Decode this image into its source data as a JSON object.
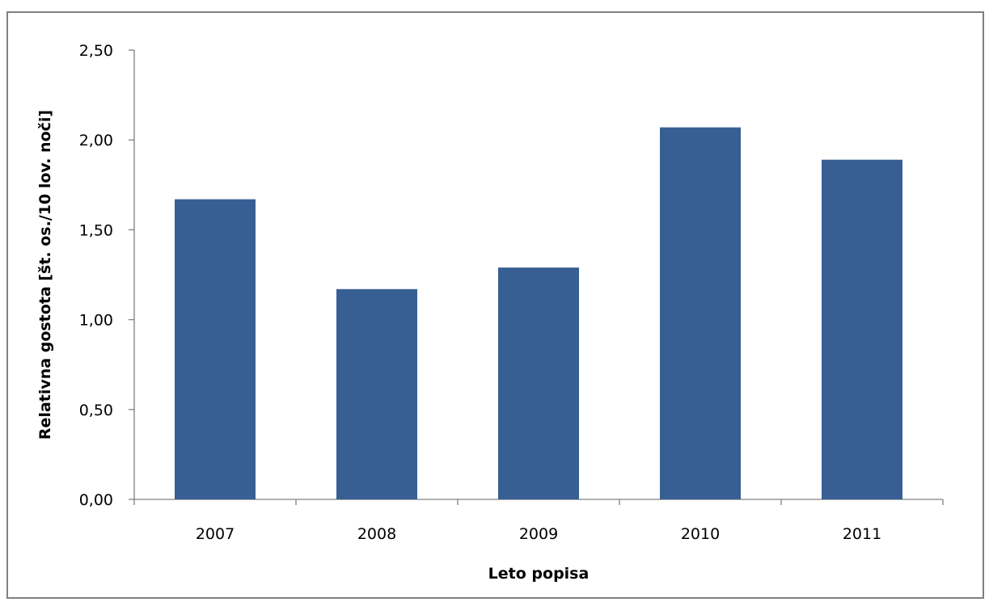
{
  "chart_data": {
    "type": "bar",
    "categories": [
      "2007",
      "2008",
      "2009",
      "2010",
      "2011"
    ],
    "values": [
      1.67,
      1.17,
      1.29,
      2.07,
      1.89
    ],
    "xlabel": "Leto popisa",
    "ylabel": "Relativna gostota [št. os./10 lov. noči]",
    "ylim": [
      0,
      2.5
    ],
    "yticks": [
      "0,00",
      "0,50",
      "1,00",
      "1,50",
      "2,00",
      "2,50"
    ],
    "bar_color": "#375f93",
    "grid": false,
    "legend": "none"
  }
}
